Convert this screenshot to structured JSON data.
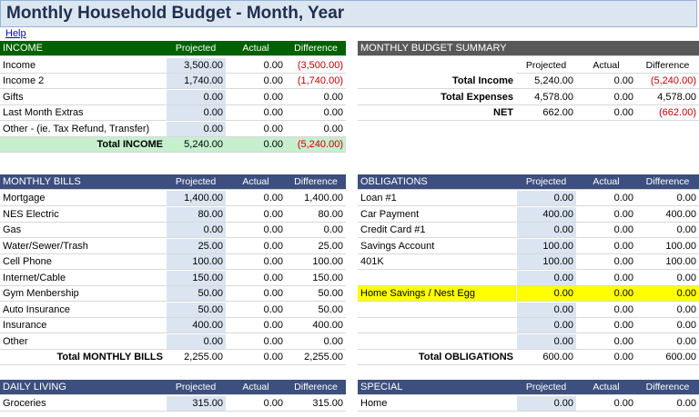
{
  "title": "Monthly Household Budget - Month, Year",
  "help": "Help",
  "colors": {
    "income_header": "#006100",
    "section_header": "#3c4f7e",
    "summary_header": "#595959",
    "projected_fill": "#dbe5f1",
    "total_income_fill": "#c6efce",
    "highlight": "#ffff00",
    "negative": "#c00000"
  },
  "col_headers": {
    "projected": "Projected",
    "actual": "Actual",
    "difference": "Difference"
  },
  "income": {
    "header": "INCOME",
    "rows": [
      {
        "label": "Income",
        "projected": "3,500.00",
        "actual": "0.00",
        "difference": "(3,500.00)"
      },
      {
        "label": "Income 2",
        "projected": "1,740.00",
        "actual": "0.00",
        "difference": "(1,740.00)"
      },
      {
        "label": "Gifts",
        "projected": "0.00",
        "actual": "0.00",
        "difference": "0.00"
      },
      {
        "label": "Last Month Extras",
        "projected": "0.00",
        "actual": "0.00",
        "difference": "0.00"
      },
      {
        "label": "Other - (ie. Tax Refund, Transfer)",
        "projected": "0.00",
        "actual": "0.00",
        "difference": "0.00"
      }
    ],
    "total": {
      "label": "Total INCOME",
      "projected": "5,240.00",
      "actual": "0.00",
      "difference": "(5,240.00)"
    }
  },
  "summary": {
    "header": "MONTHLY BUDGET SUMMARY",
    "rows": [
      {
        "label": "Total Income",
        "projected": "5,240.00",
        "actual": "0.00",
        "difference": "(5,240.00)"
      },
      {
        "label": "Total Expenses",
        "projected": "4,578.00",
        "actual": "0.00",
        "difference": "4,578.00"
      },
      {
        "label": "NET",
        "projected": "662.00",
        "actual": "0.00",
        "difference": "(662.00)"
      }
    ]
  },
  "bills": {
    "header": "MONTHLY BILLS",
    "rows": [
      {
        "label": "Mortgage",
        "projected": "1,400.00",
        "actual": "0.00",
        "difference": "1,400.00"
      },
      {
        "label": "NES Electric",
        "projected": "80.00",
        "actual": "0.00",
        "difference": "80.00"
      },
      {
        "label": "Gas",
        "projected": "0.00",
        "actual": "0.00",
        "difference": "0.00"
      },
      {
        "label": "Water/Sewer/Trash",
        "projected": "25.00",
        "actual": "0.00",
        "difference": "25.00"
      },
      {
        "label": "Cell Phone",
        "projected": "100.00",
        "actual": "0.00",
        "difference": "100.00"
      },
      {
        "label": "Internet/Cable",
        "projected": "150.00",
        "actual": "0.00",
        "difference": "150.00"
      },
      {
        "label": "Gym Menbership",
        "projected": "50.00",
        "actual": "0.00",
        "difference": "50.00"
      },
      {
        "label": "Auto Insurance",
        "projected": "50.00",
        "actual": "0.00",
        "difference": "50.00"
      },
      {
        "label": "Insurance",
        "projected": "400.00",
        "actual": "0.00",
        "difference": "400.00"
      },
      {
        "label": "Other",
        "projected": "0.00",
        "actual": "0.00",
        "difference": "0.00"
      }
    ],
    "total": {
      "label": "Total MONTHLY BILLS",
      "projected": "2,255.00",
      "actual": "0.00",
      "difference": "2,255.00"
    }
  },
  "obligations": {
    "header": "OBLIGATIONS",
    "rows": [
      {
        "label": "Loan #1",
        "projected": "0.00",
        "actual": "0.00",
        "difference": "0.00"
      },
      {
        "label": "Car Payment",
        "projected": "400.00",
        "actual": "0.00",
        "difference": "400.00"
      },
      {
        "label": "Credit Card #1",
        "projected": "0.00",
        "actual": "0.00",
        "difference": "0.00"
      },
      {
        "label": "Savings Account",
        "projected": "100.00",
        "actual": "0.00",
        "difference": "100.00"
      },
      {
        "label": "401K",
        "projected": "100.00",
        "actual": "0.00",
        "difference": "100.00"
      },
      {
        "label": "",
        "projected": "0.00",
        "actual": "0.00",
        "difference": "0.00"
      },
      {
        "label": "Home Savings / Nest Egg",
        "projected": "0.00",
        "actual": "0.00",
        "difference": "0.00"
      },
      {
        "label": "",
        "projected": "0.00",
        "actual": "0.00",
        "difference": "0.00"
      },
      {
        "label": "",
        "projected": "0.00",
        "actual": "0.00",
        "difference": "0.00"
      },
      {
        "label": "",
        "projected": "0.00",
        "actual": "0.00",
        "difference": "0.00"
      }
    ],
    "total": {
      "label": "Total OBLIGATIONS",
      "projected": "600.00",
      "actual": "0.00",
      "difference": "600.00"
    }
  },
  "daily": {
    "header": "DAILY LIVING",
    "rows": [
      {
        "label": "Groceries",
        "projected": "315.00",
        "actual": "0.00",
        "difference": "315.00"
      }
    ]
  },
  "special": {
    "header": "SPECIAL",
    "rows": [
      {
        "label": "Home",
        "projected": "0.00",
        "actual": "0.00",
        "difference": "0.00"
      }
    ]
  }
}
